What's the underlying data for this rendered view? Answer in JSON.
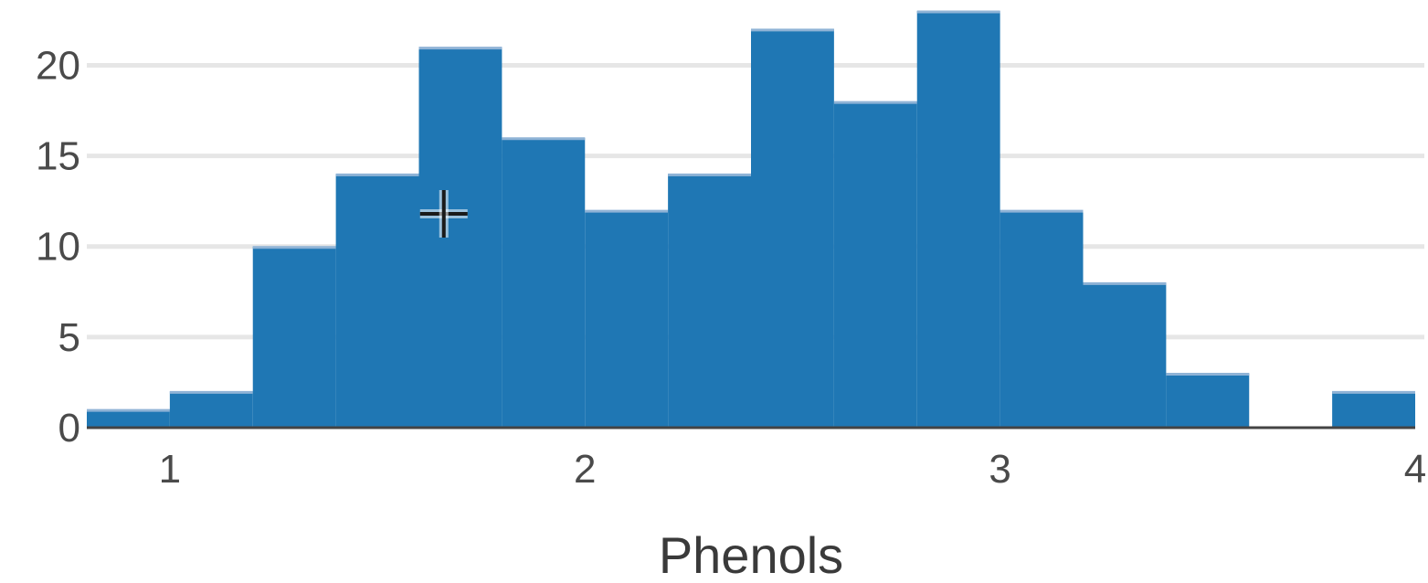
{
  "chart_data": {
    "type": "bar",
    "title": "",
    "xlabel": "Phenols",
    "ylabel": "",
    "bin_edges": [
      0.8,
      1.0,
      1.2,
      1.4,
      1.6,
      1.8,
      2.0,
      2.2,
      2.4,
      2.6,
      2.8,
      3.0,
      3.2,
      3.4,
      3.6,
      3.8,
      4.0
    ],
    "values": [
      1,
      2,
      10,
      14,
      21,
      16,
      12,
      14,
      22,
      18,
      23,
      12,
      8,
      3,
      0,
      2
    ],
    "xlim": [
      0.8,
      4.0
    ],
    "ylim": [
      0,
      23
    ],
    "x_ticks": [
      1,
      2,
      3,
      4
    ],
    "y_ticks": [
      0,
      5,
      10,
      15,
      20
    ],
    "grid": true,
    "bar_color": "#1f77b4",
    "outline_color": "#8fb3d6"
  },
  "cursor": {
    "icon": "crosshair-icon",
    "x_value": 1.66,
    "y_value": 11.8
  }
}
